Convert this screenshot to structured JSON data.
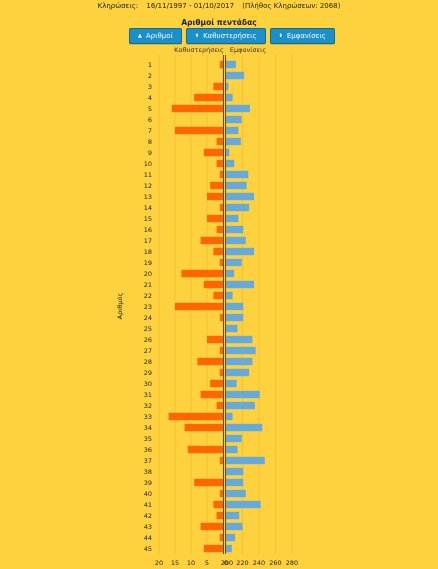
{
  "header": {
    "draws_label": "Κληρώσεις:",
    "date_range": "16/11/1997 - 01/10/2017",
    "draw_count": "(Πλήθος Κληρώσεων: 2068)"
  },
  "title": "Αριθμοί πεντάδας",
  "buttons": [
    {
      "label": "Αριθμοί",
      "icon": "triangle-up-icon"
    },
    {
      "label": "Καθυστερήσεις",
      "icon": "sort-icon"
    },
    {
      "label": "Εμφανίσεις",
      "icon": "sort-icon"
    }
  ],
  "chart_data": {
    "type": "bar",
    "title": "Αριθμοί πεντάδας",
    "ylabel": "Αριθμός",
    "categories": [
      "1",
      "2",
      "3",
      "4",
      "5",
      "6",
      "7",
      "8",
      "9",
      "10",
      "11",
      "12",
      "13",
      "14",
      "15",
      "16",
      "17",
      "18",
      "19",
      "20",
      "21",
      "22",
      "23",
      "24",
      "25",
      "26",
      "27",
      "28",
      "29",
      "30",
      "31",
      "32",
      "33",
      "34",
      "35",
      "36",
      "37",
      "38",
      "39",
      "40",
      "41",
      "42",
      "43",
      "44",
      "45"
    ],
    "series": [
      {
        "name": "Καθυστερήσεις",
        "color": "#ff6600",
        "xlim": [
          0,
          20
        ],
        "ticks": [
          20,
          15,
          10,
          5,
          0
        ],
        "values": [
          1,
          0,
          3,
          9,
          16,
          0,
          15,
          2,
          6,
          2,
          1,
          4,
          5,
          1,
          5,
          2,
          7,
          3,
          1,
          13,
          6,
          3,
          15,
          1,
          0,
          5,
          1,
          8,
          1,
          4,
          7,
          2,
          17,
          12,
          0,
          11,
          1,
          0,
          9,
          1,
          3,
          2,
          7,
          1,
          6
        ]
      },
      {
        "name": "Εμφανίσεις",
        "color": "#66aadd",
        "xlim": [
          200,
          280
        ],
        "ticks": [
          200,
          220,
          240,
          260,
          280
        ],
        "values": [
          212,
          222,
          203,
          208,
          229,
          219,
          215,
          218,
          204,
          210,
          227,
          225,
          234,
          228,
          215,
          221,
          224,
          234,
          219,
          210,
          234,
          208,
          221,
          221,
          214,
          232,
          236,
          232,
          228,
          213,
          241,
          235,
          208,
          244,
          219,
          214,
          247,
          221,
          221,
          224,
          242,
          216,
          220,
          211,
          207
        ]
      }
    ],
    "grid": true
  }
}
